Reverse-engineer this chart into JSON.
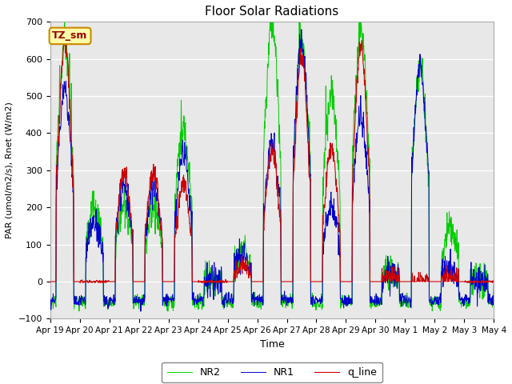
{
  "title": "Floor Solar Radiations",
  "xlabel": "Time",
  "ylabel": "PAR (umol/m2/s), Rnet (W/m2)",
  "ylim": [
    -100,
    700
  ],
  "yticks": [
    -100,
    0,
    100,
    200,
    300,
    400,
    500,
    600,
    700
  ],
  "bg_color": "#e8e8e8",
  "legend_entries": [
    "q_line",
    "NR1",
    "NR2"
  ],
  "legend_colors": [
    "#cc0000",
    "#0000cc",
    "#00cc00"
  ],
  "annotation_text": "TZ_sm",
  "annotation_bg": "#ffffaa",
  "annotation_edge": "#cc8800",
  "xlim": [
    0,
    15
  ],
  "tick_labels": [
    "Apr 19",
    "Apr 20",
    "Apr 21",
    "Apr 22",
    "Apr 23",
    "Apr 24",
    "Apr 25",
    "Apr 26",
    "Apr 27",
    "Apr 28",
    "Apr 29",
    "Apr 30",
    "May 1",
    "May 2",
    "May 3",
    "May 4"
  ]
}
